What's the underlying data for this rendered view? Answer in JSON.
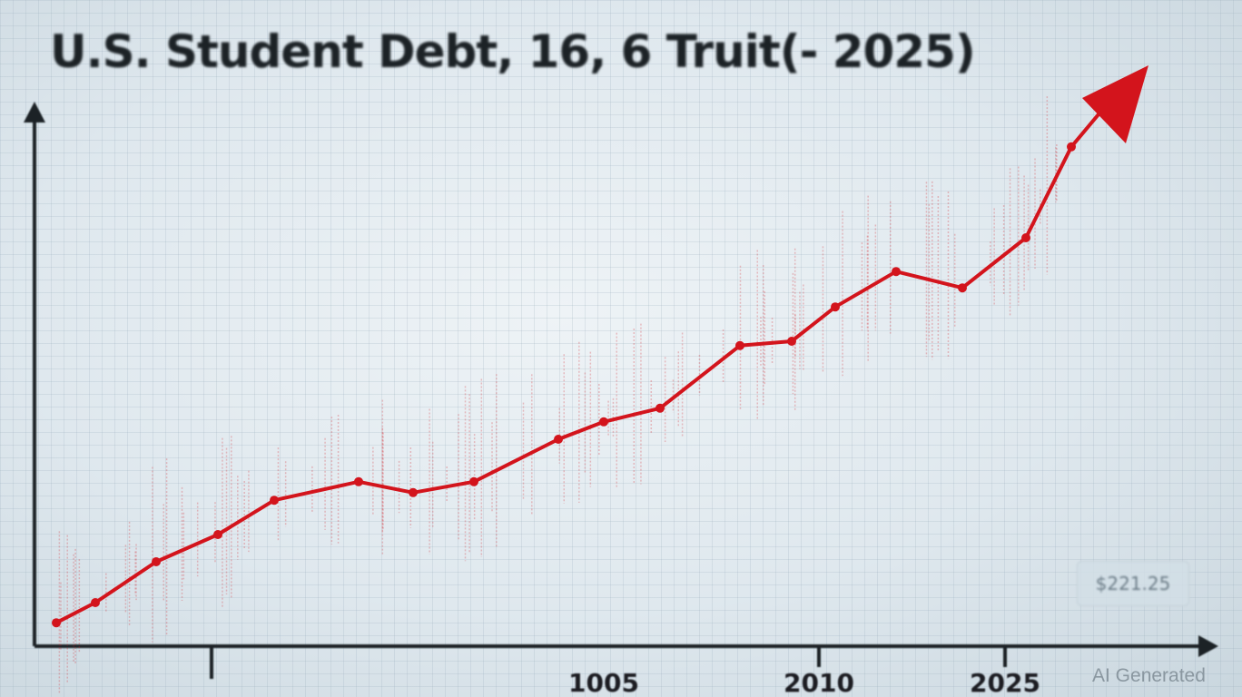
{
  "chart_data": {
    "type": "line",
    "title": "U.S. Student Debt, 16, 6 Truit(- 2025)",
    "xlabel": "",
    "ylabel": "",
    "x_tick_labels": [
      "1005",
      "2010",
      "2025"
    ],
    "x": [
      0,
      1,
      2,
      3,
      4,
      5,
      6,
      7,
      8,
      9,
      10,
      11,
      12,
      13,
      14,
      15,
      16,
      17
    ],
    "values": [
      4.3,
      8,
      15.5,
      20.5,
      26.8,
      30.2,
      28.2,
      30.2,
      38,
      41.2,
      43.7,
      55.2,
      56,
      62.3,
      68.8,
      65.8,
      75,
      91.7
    ],
    "ylim": [
      0,
      100
    ],
    "trend_arrow": true,
    "grid": true,
    "annotation": "$221.25",
    "line_color": "#d3141c"
  },
  "watermark": "AI Generated"
}
